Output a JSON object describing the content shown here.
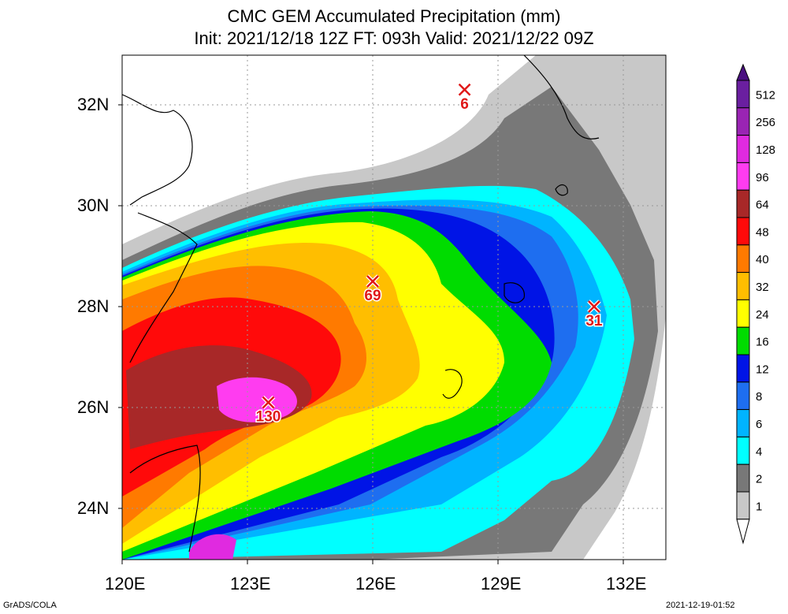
{
  "title": {
    "line1": "CMC GEM Accumulated Precipitation (mm)",
    "line2": "Init: 2021/12/18 12Z  FT: 093h  Valid: 2021/12/22 09Z"
  },
  "axes": {
    "lat_labels": [
      "32N",
      "30N",
      "28N",
      "26N",
      "24N"
    ],
    "lon_labels": [
      "120E",
      "123E",
      "126E",
      "129E",
      "132E"
    ]
  },
  "markers": [
    {
      "label": "6",
      "lat": 32.3,
      "lon": 128.2
    },
    {
      "label": "69",
      "lat": 28.5,
      "lon": 126.0
    },
    {
      "label": "31",
      "lat": 28.0,
      "lon": 131.3
    },
    {
      "label": "130",
      "lat": 26.1,
      "lon": 123.5
    }
  ],
  "legend": {
    "levels": [
      "512",
      "256",
      "128",
      "96",
      "64",
      "48",
      "40",
      "32",
      "24",
      "16",
      "12",
      "8",
      "6",
      "4",
      "2",
      "1"
    ],
    "colors": [
      "#6a1fa0",
      "#9a24b4",
      "#e02ae0",
      "#ff3cf0",
      "#a82828",
      "#ff0a0a",
      "#ff7a00",
      "#ffbe00",
      "#ffff00",
      "#00dc00",
      "#0014e6",
      "#1e6ef0",
      "#00b4ff",
      "#00ffff",
      "#787878",
      "#c8c8c8"
    ]
  },
  "footer": {
    "left": "GrADS/COLA",
    "right": "2021-12-19-01:52"
  }
}
